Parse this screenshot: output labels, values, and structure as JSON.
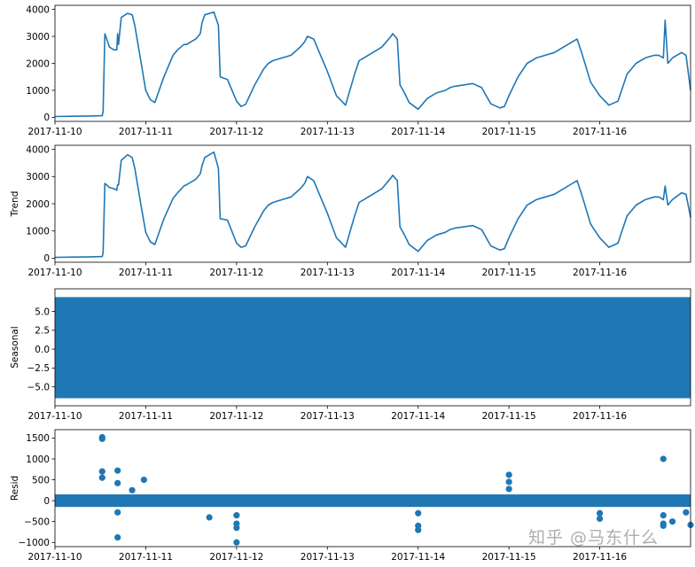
{
  "chart_data": [
    {
      "type": "line",
      "ylabel": "",
      "color": "#1f77b4",
      "x_ticks": [
        "2017-11-10",
        "2017-11-11",
        "2017-11-12",
        "2017-11-13",
        "2017-11-14",
        "2017-11-15",
        "2017-11-16"
      ],
      "x_range": [
        "2017-11-10 00:00",
        "2017-11-17 00:00"
      ],
      "ylim": [
        -150,
        4150
      ],
      "y_ticks": [
        0,
        1000,
        2000,
        3000,
        4000
      ],
      "series": [
        {
          "x": [
            0,
            0.2,
            0.4,
            0.52,
            0.53,
            0.55,
            0.6,
            0.65,
            0.68,
            0.69,
            0.7,
            0.73,
            0.8,
            0.85,
            0.88,
            0.95,
            1.0,
            1.05,
            1.1,
            1.2,
            1.3,
            1.35,
            1.42,
            1.45,
            1.5,
            1.55,
            1.6,
            1.62,
            1.65,
            1.75,
            1.8,
            1.82,
            1.9,
            2.0,
            2.05,
            2.1,
            2.2,
            2.3,
            2.35,
            2.4,
            2.5,
            2.6,
            2.7,
            2.75,
            2.78,
            2.85,
            2.9,
            3.0,
            3.1,
            3.2,
            3.3,
            3.35,
            3.4,
            3.45,
            3.5,
            3.6,
            3.7,
            3.72,
            3.77,
            3.8,
            3.85,
            3.9,
            4.0,
            4.1,
            4.2,
            4.3,
            4.35,
            4.4,
            4.5,
            4.6,
            4.7,
            4.75,
            4.8,
            4.9,
            4.95,
            5.0,
            5.1,
            5.2,
            5.3,
            5.4,
            5.5,
            5.6,
            5.7,
            5.75,
            5.8,
            5.9,
            6.0,
            6.1,
            6.2,
            6.3,
            6.35,
            6.4,
            6.5,
            6.6,
            6.65,
            6.7,
            6.72,
            6.75,
            6.8,
            6.9,
            6.95,
            7.0
          ],
          "y": [
            30,
            40,
            50,
            60,
            220,
            3100,
            2600,
            2500,
            2500,
            3100,
            2700,
            3700,
            3850,
            3800,
            3400,
            2000,
            1000,
            650,
            550,
            1500,
            2300,
            2500,
            2700,
            2700,
            2800,
            2900,
            3100,
            3500,
            3800,
            3900,
            3400,
            1500,
            1400,
            600,
            400,
            480,
            1200,
            1800,
            2000,
            2100,
            2200,
            2300,
            2600,
            2800,
            3000,
            2900,
            2500,
            1700,
            800,
            450,
            1600,
            2100,
            2200,
            2300,
            2400,
            2600,
            3000,
            3100,
            2900,
            1200,
            900,
            550,
            300,
            700,
            900,
            1000,
            1100,
            1150,
            1200,
            1250,
            1100,
            800,
            500,
            350,
            400,
            800,
            1500,
            2000,
            2200,
            2300,
            2400,
            2600,
            2800,
            2900,
            2400,
            1300,
            800,
            450,
            600,
            1600,
            1800,
            2000,
            2200,
            2300,
            2300,
            2200,
            3600,
            2000,
            2200,
            2400,
            2300,
            1000
          ]
        }
      ]
    },
    {
      "type": "line",
      "ylabel": "Trend",
      "color": "#1f77b4",
      "x_ticks": [
        "2017-11-10",
        "2017-11-11",
        "2017-11-12",
        "2017-11-13",
        "2017-11-14",
        "2017-11-15",
        "2017-11-16"
      ],
      "x_range": [
        "2017-11-10 00:00",
        "2017-11-17 00:00"
      ],
      "ylim": [
        -150,
        4150
      ],
      "y_ticks": [
        0,
        1000,
        2000,
        3000,
        4000
      ],
      "series": [
        {
          "x": [
            0,
            0.2,
            0.4,
            0.52,
            0.53,
            0.55,
            0.6,
            0.65,
            0.68,
            0.69,
            0.7,
            0.73,
            0.8,
            0.85,
            0.88,
            0.95,
            1.0,
            1.05,
            1.1,
            1.2,
            1.3,
            1.35,
            1.42,
            1.45,
            1.5,
            1.55,
            1.6,
            1.62,
            1.65,
            1.75,
            1.8,
            1.82,
            1.9,
            2.0,
            2.05,
            2.1,
            2.2,
            2.3,
            2.35,
            2.4,
            2.5,
            2.6,
            2.7,
            2.75,
            2.78,
            2.85,
            2.9,
            3.0,
            3.1,
            3.2,
            3.3,
            3.35,
            3.4,
            3.45,
            3.5,
            3.6,
            3.7,
            3.72,
            3.77,
            3.8,
            3.85,
            3.9,
            4.0,
            4.1,
            4.2,
            4.3,
            4.35,
            4.4,
            4.5,
            4.6,
            4.7,
            4.75,
            4.8,
            4.9,
            4.95,
            5.0,
            5.1,
            5.2,
            5.3,
            5.4,
            5.5,
            5.6,
            5.7,
            5.75,
            5.8,
            5.9,
            6.0,
            6.1,
            6.2,
            6.3,
            6.35,
            6.4,
            6.5,
            6.6,
            6.65,
            6.7,
            6.72,
            6.75,
            6.8,
            6.9,
            6.95,
            7.0
          ],
          "y": [
            30,
            40,
            50,
            60,
            200,
            2750,
            2600,
            2550,
            2500,
            2700,
            2700,
            3600,
            3800,
            3700,
            3300,
            1900,
            950,
            600,
            500,
            1450,
            2200,
            2400,
            2650,
            2700,
            2800,
            2900,
            3100,
            3400,
            3700,
            3900,
            3300,
            1450,
            1400,
            550,
            400,
            450,
            1150,
            1750,
            1950,
            2050,
            2150,
            2250,
            2550,
            2750,
            3000,
            2850,
            2450,
            1650,
            750,
            400,
            1550,
            2050,
            2150,
            2250,
            2350,
            2550,
            2950,
            3050,
            2850,
            1150,
            850,
            500,
            250,
            650,
            850,
            950,
            1050,
            1100,
            1150,
            1200,
            1050,
            750,
            450,
            300,
            350,
            750,
            1450,
            1950,
            2150,
            2250,
            2350,
            2550,
            2750,
            2850,
            2350,
            1250,
            750,
            400,
            550,
            1550,
            1750,
            1950,
            2150,
            2250,
            2250,
            2150,
            2650,
            1950,
            2150,
            2400,
            2350,
            1500
          ]
        }
      ]
    },
    {
      "type": "area",
      "ylabel": "Seasonal",
      "color": "#1f77b4",
      "x_ticks": [
        "2017-11-10",
        "2017-11-11",
        "2017-11-12",
        "2017-11-13",
        "2017-11-14",
        "2017-11-15",
        "2017-11-16"
      ],
      "x_range": [
        "2017-11-10 00:00",
        "2017-11-17 00:00"
      ],
      "ylim": [
        -7.5,
        8.0
      ],
      "y_ticks": [
        -5.0,
        -2.5,
        0.0,
        2.5,
        5.0
      ],
      "y_tick_labels": [
        "−5.0",
        "−2.5",
        "0.0",
        "2.5",
        "5.0"
      ],
      "band": {
        "min": -6.5,
        "max": 6.9
      }
    },
    {
      "type": "scatter",
      "ylabel": "Resid",
      "color": "#1f77b4",
      "x_ticks": [
        "2017-11-10",
        "2017-11-11",
        "2017-11-12",
        "2017-11-13",
        "2017-11-14",
        "2017-11-15",
        "2017-11-16"
      ],
      "x_range": [
        "2017-11-10 00:00",
        "2017-11-17 00:00"
      ],
      "ylim": [
        -1100,
        1700
      ],
      "y_ticks": [
        -1000,
        -500,
        0,
        500,
        1000,
        1500
      ],
      "y_tick_labels": [
        "−1000",
        "−500",
        "0",
        "500",
        "1000",
        "1500"
      ],
      "band": {
        "min": -150,
        "max": 150
      },
      "points": [
        {
          "x": 0.52,
          "y": 1520
        },
        {
          "x": 0.52,
          "y": 1480
        },
        {
          "x": 0.52,
          "y": 700
        },
        {
          "x": 0.52,
          "y": 550
        },
        {
          "x": 0.69,
          "y": 720
        },
        {
          "x": 0.69,
          "y": 420
        },
        {
          "x": 0.69,
          "y": -280
        },
        {
          "x": 0.69,
          "y": -880
        },
        {
          "x": 0.85,
          "y": 250
        },
        {
          "x": 0.98,
          "y": 500
        },
        {
          "x": 1.7,
          "y": -400
        },
        {
          "x": 2.0,
          "y": -350
        },
        {
          "x": 2.0,
          "y": -550
        },
        {
          "x": 2.0,
          "y": -650
        },
        {
          "x": 2.0,
          "y": -1000
        },
        {
          "x": 4.0,
          "y": -300
        },
        {
          "x": 4.0,
          "y": -600
        },
        {
          "x": 4.0,
          "y": -700
        },
        {
          "x": 5.0,
          "y": 620
        },
        {
          "x": 5.0,
          "y": 450
        },
        {
          "x": 5.0,
          "y": 280
        },
        {
          "x": 6.0,
          "y": -300
        },
        {
          "x": 6.0,
          "y": -430
        },
        {
          "x": 6.7,
          "y": 1000
        },
        {
          "x": 6.7,
          "y": -350
        },
        {
          "x": 6.7,
          "y": -550
        },
        {
          "x": 6.7,
          "y": -600
        },
        {
          "x": 6.8,
          "y": -500
        },
        {
          "x": 6.95,
          "y": -280
        },
        {
          "x": 7.0,
          "y": -580
        }
      ]
    }
  ],
  "watermark": "知乎 @马东什么"
}
